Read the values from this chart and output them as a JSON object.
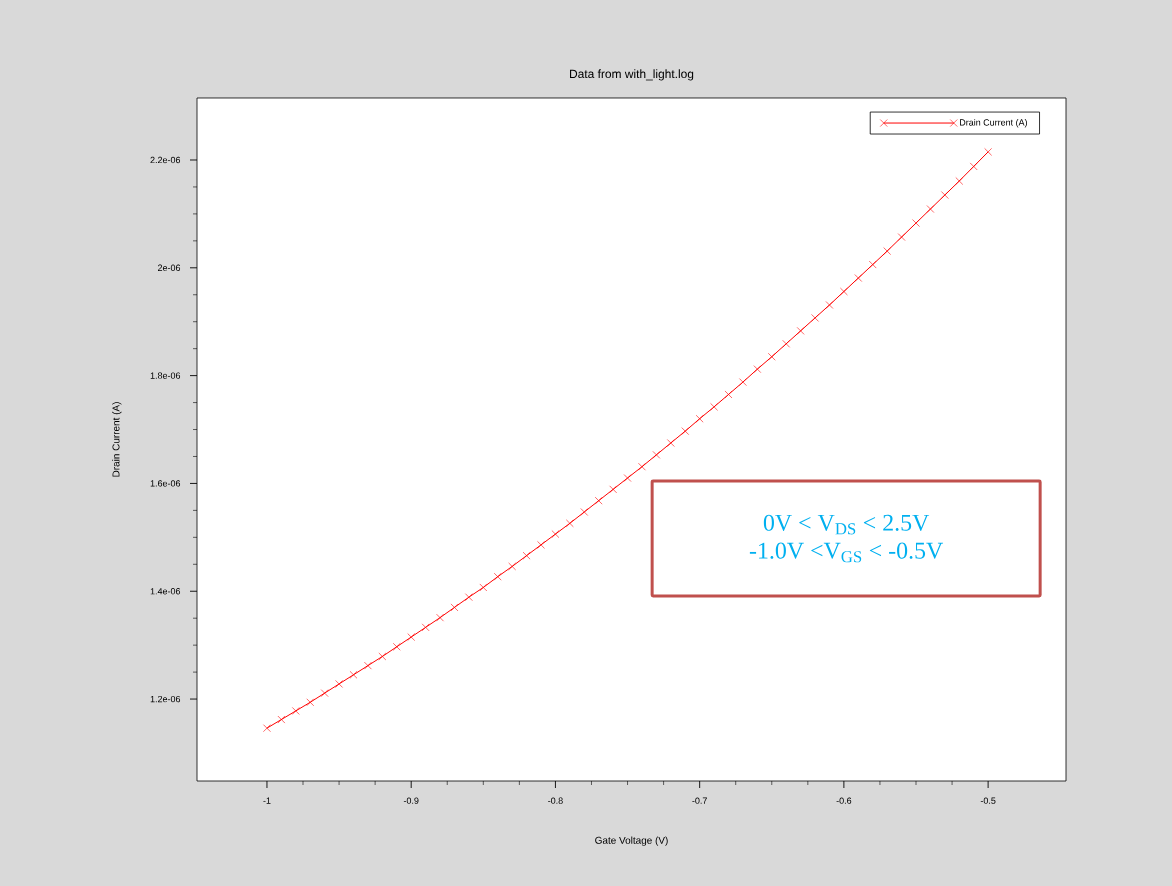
{
  "chart_data": {
    "type": "line",
    "title": "Data from with_light.log",
    "xlabel": "Gate Voltage (V)",
    "ylabel": "Drain Current (A)",
    "x": [
      -1,
      -0.99,
      -0.98,
      -0.97,
      -0.96,
      -0.95,
      -0.94,
      -0.93,
      -0.92,
      -0.91,
      -0.9,
      -0.89,
      -0.88,
      -0.87,
      -0.86,
      -0.85,
      -0.84,
      -0.83,
      -0.82,
      -0.81,
      -0.8,
      -0.79,
      -0.78,
      -0.77,
      -0.76,
      -0.75,
      -0.74,
      -0.73,
      -0.72,
      -0.71,
      -0.7,
      -0.69,
      -0.68,
      -0.67,
      -0.66,
      -0.65,
      -0.64,
      -0.63,
      -0.62,
      -0.61,
      -0.6,
      -0.59,
      -0.58,
      -0.57,
      -0.56,
      -0.55,
      -0.54,
      -0.53,
      -0.52,
      -0.51,
      -0.5
    ],
    "series": [
      {
        "name": "Drain Current (A)",
        "color": "#ff0000",
        "values": [
          1.146e-06,
          1.162e-06,
          1.178e-06,
          1.194e-06,
          1.211e-06,
          1.228e-06,
          1.245e-06,
          1.262e-06,
          1.279e-06,
          1.297e-06,
          1.315e-06,
          1.333e-06,
          1.351e-06,
          1.37e-06,
          1.389e-06,
          1.407e-06,
          1.427e-06,
          1.446e-06,
          1.466e-06,
          1.486e-06,
          1.506e-06,
          1.526e-06,
          1.547e-06,
          1.568e-06,
          1.589e-06,
          1.61e-06,
          1.631e-06,
          1.653e-06,
          1.675e-06,
          1.697e-06,
          1.72e-06,
          1.742e-06,
          1.765e-06,
          1.788e-06,
          1.812e-06,
          1.835e-06,
          1.859e-06,
          1.883e-06,
          1.907e-06,
          1.931e-06,
          1.956e-06,
          1.981e-06,
          2.006e-06,
          2.031e-06,
          2.057e-06,
          2.083e-06,
          2.109e-06,
          2.135e-06,
          2.161e-06,
          2.188e-06,
          2.215e-06
        ]
      }
    ],
    "xlim": [
      -1.0485,
      -0.446
    ],
    "ylim": [
      1.048e-06,
      2.315e-06
    ],
    "xticks": [
      -1,
      -0.9,
      -0.8,
      -0.7,
      -0.6,
      -0.5
    ],
    "yticks": [
      {
        "value": 1.2e-06,
        "label": "1.2e-06"
      },
      {
        "value": 1.4e-06,
        "label": "1.4e-06"
      },
      {
        "value": 1.6e-06,
        "label": "1.6e-06"
      },
      {
        "value": 1.8e-06,
        "label": "1.8e-06"
      },
      {
        "value": 2e-06,
        "label": "2e-06"
      },
      {
        "value": 2.2e-06,
        "label": "2.2e-06"
      }
    ],
    "marker": "cross",
    "line_style": "solid",
    "legend": "top right",
    "annotations": [
      "0V < V$_{DS}$ < 2.5V",
      "-1.0V <V$_{GS}$ < -0.5V"
    ]
  }
}
